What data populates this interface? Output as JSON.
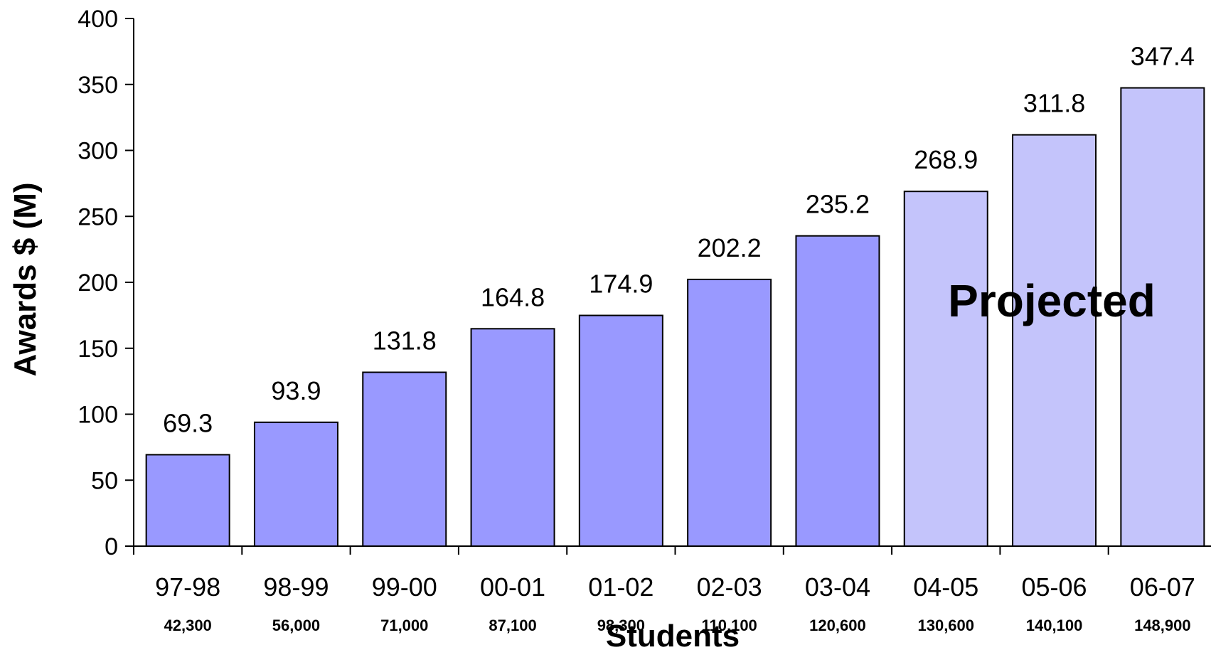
{
  "chart_data": {
    "type": "bar",
    "categories": [
      "97-98",
      "98-99",
      "99-00",
      "00-01",
      "01-02",
      "02-03",
      "03-04",
      "04-05",
      "05-06",
      "06-07"
    ],
    "values": [
      69.3,
      93.9,
      131.8,
      164.8,
      174.9,
      202.2,
      235.2,
      268.9,
      311.8,
      347.4
    ],
    "value_labels": [
      "69.3",
      "93.9",
      "131.8",
      "164.8",
      "174.9",
      "202.2",
      "235.2",
      "268.9",
      "311.8",
      "347.4"
    ],
    "students": [
      "42,300",
      "56,000",
      "71,000",
      "87,100",
      "98,300",
      "110,100",
      "120,600",
      "130,600",
      "140,100",
      "148,900"
    ],
    "projected": [
      false,
      false,
      false,
      false,
      false,
      false,
      false,
      true,
      true,
      true
    ],
    "ylabel": "Awards $ (M)",
    "xlabel": "Students",
    "ylim": [
      0,
      400
    ],
    "yticks": [
      0,
      50,
      100,
      150,
      200,
      250,
      300,
      350,
      400
    ],
    "annotation": "Projected",
    "grid": false,
    "colors": {
      "actual": "#9999ff",
      "projected": "#c4c4fb",
      "outline": "#000000"
    }
  }
}
